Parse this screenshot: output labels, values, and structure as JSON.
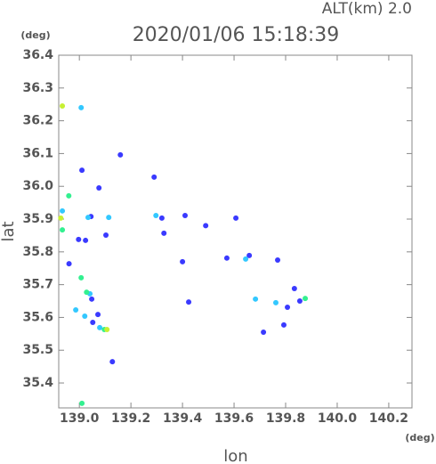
{
  "chart_data": {
    "type": "scatter",
    "title": "2020/01/06 15:18:39",
    "annotation": "ALT(km)  2.0",
    "x_label": "lon",
    "y_label": "lat",
    "x_unit": "(deg)",
    "y_unit": "(deg)",
    "xlim": [
      138.92,
      140.29
    ],
    "ylim": [
      35.324,
      36.4
    ],
    "xticks": [
      {
        "value": 139,
        "label": "139.0"
      },
      139.2,
      139.4,
      139.6,
      139.8,
      {
        "value": 140,
        "label": "140.0"
      },
      140.2
    ],
    "yticks": [
      35.4,
      35.5,
      35.6,
      35.7,
      35.8,
      35.9,
      {
        "value": 36,
        "label": "36.0"
      },
      36.1,
      36.2,
      36.3,
      36.4
    ],
    "series": [
      {
        "color": "#3a3aff",
        "x": [
          139.159,
          139.01,
          139.076,
          139.29,
          139.045,
          138.997,
          139.024,
          139.103,
          138.96,
          139.048,
          139.072,
          139.052,
          139.128,
          139.607,
          139.572,
          139.659,
          139.769,
          139.4,
          139.49,
          139.834,
          139.807,
          139.714,
          139.793,
          139.855,
          139.424,
          139.32,
          139.41,
          139.328
        ],
        "y": [
          36.096,
          36.049,
          35.995,
          36.028,
          35.908,
          35.838,
          35.835,
          35.851,
          35.764,
          35.656,
          35.609,
          35.585,
          35.465,
          35.903,
          35.781,
          35.789,
          35.775,
          35.77,
          35.88,
          35.688,
          35.631,
          35.555,
          35.577,
          35.65,
          35.647,
          35.903,
          35.911,
          35.857
        ]
      },
      {
        "color": "#33c8ff",
        "x": [
          139.007,
          139.034,
          139.114,
          139.297,
          139.041,
          139.021,
          139.079,
          139.645,
          139.683,
          139.762,
          138.934,
          138.986
        ],
        "y": [
          36.24,
          35.905,
          35.905,
          35.911,
          35.672,
          35.604,
          35.569,
          35.778,
          35.656,
          35.645,
          35.925,
          35.623
        ]
      },
      {
        "color": "#33f090",
        "x": [
          138.959,
          138.934,
          139.007,
          139.028,
          139.097,
          139.876,
          139.01
        ],
        "y": [
          35.971,
          35.867,
          35.721,
          35.677,
          35.563,
          35.658,
          35.338
        ]
      },
      {
        "color": "#c8f033",
        "x": [
          138.934,
          138.928,
          139.107
        ],
        "y": [
          36.245,
          35.903,
          35.563
        ]
      }
    ]
  }
}
